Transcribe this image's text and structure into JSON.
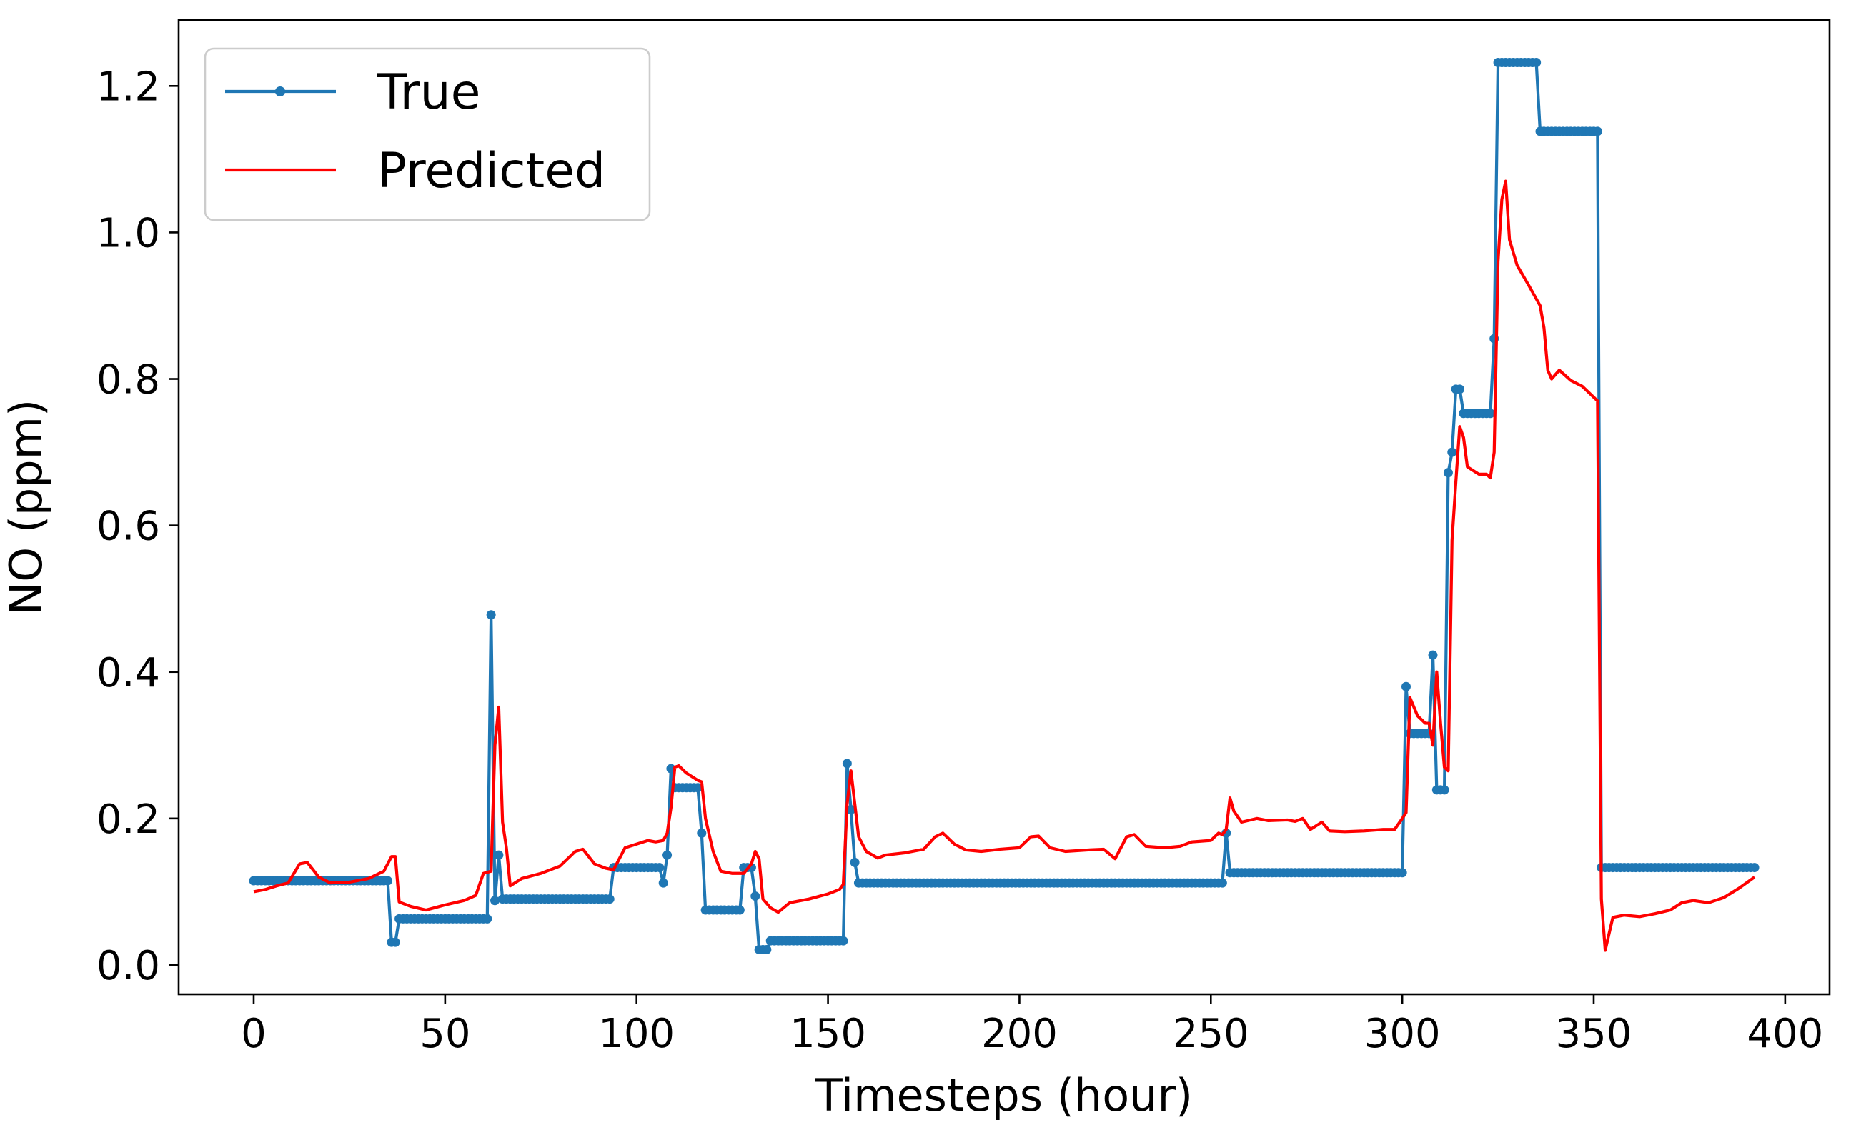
{
  "chart_data": {
    "type": "line",
    "title": "",
    "xlabel": "Timesteps (hour)",
    "ylabel": "NO (ppm)",
    "xlim": [
      -19.6,
      411.6
    ],
    "ylim": [
      -0.04,
      1.29
    ],
    "xticks": [
      0,
      50,
      100,
      150,
      200,
      250,
      300,
      350,
      400
    ],
    "yticks": [
      0.0,
      0.2,
      0.4,
      0.6,
      0.8,
      1.0,
      1.2
    ],
    "xtick_labels": [
      "0",
      "50",
      "100",
      "150",
      "200",
      "250",
      "300",
      "350",
      "400"
    ],
    "ytick_labels": [
      "0.0",
      "0.2",
      "0.4",
      "0.6",
      "0.8",
      "1.0",
      "1.2"
    ],
    "grid": false,
    "legend_position": "top-left",
    "series": [
      {
        "name": "True",
        "color": "#1f77b4",
        "marker": "circle",
        "segments": [
          [
            0,
            35,
            0.115
          ],
          [
            36,
            37,
            0.031
          ],
          [
            38,
            62,
            0.063
          ],
          [
            62,
            62,
            0.478
          ],
          [
            63,
            63,
            0.088
          ],
          [
            64,
            64,
            0.15
          ],
          [
            65,
            94,
            0.09
          ],
          [
            94,
            107,
            0.133
          ],
          [
            107,
            107,
            0.112
          ],
          [
            108,
            108,
            0.15
          ],
          [
            109,
            109,
            0.268
          ],
          [
            110,
            116,
            0.242
          ],
          [
            117,
            117,
            0.18
          ],
          [
            118,
            127,
            0.075
          ],
          [
            128,
            130,
            0.133
          ],
          [
            131,
            131,
            0.094
          ],
          [
            132,
            134,
            0.021
          ],
          [
            135,
            154,
            0.033
          ],
          [
            155,
            155,
            0.275
          ],
          [
            156,
            156,
            0.212
          ],
          [
            157,
            157,
            0.14
          ],
          [
            158,
            253,
            0.112
          ],
          [
            254,
            254,
            0.18
          ],
          [
            255,
            300,
            0.126
          ],
          [
            301,
            301,
            0.38
          ],
          [
            302,
            307,
            0.316
          ],
          [
            308,
            308,
            0.423
          ],
          [
            309,
            311,
            0.239
          ],
          [
            312,
            312,
            0.672
          ],
          [
            313,
            313,
            0.7
          ],
          [
            314,
            315,
            0.786
          ],
          [
            316,
            323,
            0.753
          ],
          [
            324,
            324,
            0.855
          ],
          [
            325,
            335,
            1.232
          ],
          [
            336,
            351,
            1.138
          ],
          [
            352,
            392,
            0.133
          ]
        ]
      },
      {
        "name": "Predicted",
        "color": "#ff0000",
        "points": [
          [
            0,
            0.1
          ],
          [
            3,
            0.103
          ],
          [
            6,
            0.108
          ],
          [
            9,
            0.112
          ],
          [
            12,
            0.138
          ],
          [
            14,
            0.14
          ],
          [
            17,
            0.12
          ],
          [
            20,
            0.112
          ],
          [
            25,
            0.113
          ],
          [
            30,
            0.118
          ],
          [
            34,
            0.128
          ],
          [
            36,
            0.148
          ],
          [
            37,
            0.148
          ],
          [
            38,
            0.086
          ],
          [
            41,
            0.08
          ],
          [
            45,
            0.075
          ],
          [
            50,
            0.082
          ],
          [
            55,
            0.088
          ],
          [
            58,
            0.095
          ],
          [
            60,
            0.125
          ],
          [
            62,
            0.128
          ],
          [
            63,
            0.3
          ],
          [
            64,
            0.352
          ],
          [
            65,
            0.195
          ],
          [
            66,
            0.16
          ],
          [
            67,
            0.108
          ],
          [
            70,
            0.118
          ],
          [
            75,
            0.125
          ],
          [
            80,
            0.135
          ],
          [
            84,
            0.155
          ],
          [
            86,
            0.158
          ],
          [
            89,
            0.138
          ],
          [
            92,
            0.132
          ],
          [
            94,
            0.13
          ],
          [
            97,
            0.16
          ],
          [
            100,
            0.165
          ],
          [
            103,
            0.17
          ],
          [
            105,
            0.168
          ],
          [
            107,
            0.17
          ],
          [
            108,
            0.18
          ],
          [
            109,
            0.215
          ],
          [
            110,
            0.27
          ],
          [
            111,
            0.272
          ],
          [
            113,
            0.262
          ],
          [
            116,
            0.252
          ],
          [
            117,
            0.25
          ],
          [
            118,
            0.2
          ],
          [
            120,
            0.155
          ],
          [
            122,
            0.128
          ],
          [
            125,
            0.125
          ],
          [
            128,
            0.125
          ],
          [
            130,
            0.138
          ],
          [
            131,
            0.155
          ],
          [
            132,
            0.145
          ],
          [
            133,
            0.09
          ],
          [
            135,
            0.078
          ],
          [
            137,
            0.072
          ],
          [
            140,
            0.085
          ],
          [
            145,
            0.09
          ],
          [
            150,
            0.097
          ],
          [
            153,
            0.103
          ],
          [
            154,
            0.11
          ],
          [
            155,
            0.22
          ],
          [
            156,
            0.265
          ],
          [
            157,
            0.22
          ],
          [
            158,
            0.175
          ],
          [
            160,
            0.155
          ],
          [
            163,
            0.146
          ],
          [
            165,
            0.15
          ],
          [
            170,
            0.153
          ],
          [
            175,
            0.158
          ],
          [
            178,
            0.175
          ],
          [
            180,
            0.18
          ],
          [
            183,
            0.165
          ],
          [
            186,
            0.157
          ],
          [
            190,
            0.155
          ],
          [
            195,
            0.158
          ],
          [
            200,
            0.16
          ],
          [
            203,
            0.175
          ],
          [
            205,
            0.176
          ],
          [
            208,
            0.16
          ],
          [
            212,
            0.155
          ],
          [
            218,
            0.157
          ],
          [
            222,
            0.158
          ],
          [
            225,
            0.145
          ],
          [
            228,
            0.175
          ],
          [
            230,
            0.178
          ],
          [
            233,
            0.162
          ],
          [
            238,
            0.16
          ],
          [
            242,
            0.162
          ],
          [
            245,
            0.168
          ],
          [
            250,
            0.17
          ],
          [
            252,
            0.18
          ],
          [
            253,
            0.178
          ],
          [
            254,
            0.185
          ],
          [
            255,
            0.228
          ],
          [
            256,
            0.21
          ],
          [
            258,
            0.195
          ],
          [
            262,
            0.2
          ],
          [
            265,
            0.197
          ],
          [
            270,
            0.198
          ],
          [
            272,
            0.196
          ],
          [
            274,
            0.2
          ],
          [
            276,
            0.185
          ],
          [
            279,
            0.195
          ],
          [
            281,
            0.183
          ],
          [
            285,
            0.182
          ],
          [
            290,
            0.183
          ],
          [
            295,
            0.185
          ],
          [
            298,
            0.185
          ],
          [
            300,
            0.2
          ],
          [
            301,
            0.208
          ],
          [
            302,
            0.365
          ],
          [
            304,
            0.34
          ],
          [
            306,
            0.33
          ],
          [
            307,
            0.33
          ],
          [
            308,
            0.3
          ],
          [
            309,
            0.4
          ],
          [
            310,
            0.33
          ],
          [
            311,
            0.27
          ],
          [
            312,
            0.265
          ],
          [
            313,
            0.58
          ],
          [
            314,
            0.66
          ],
          [
            315,
            0.735
          ],
          [
            316,
            0.72
          ],
          [
            317,
            0.68
          ],
          [
            320,
            0.67
          ],
          [
            322,
            0.67
          ],
          [
            323,
            0.665
          ],
          [
            324,
            0.7
          ],
          [
            325,
            0.96
          ],
          [
            326,
            1.045
          ],
          [
            327,
            1.07
          ],
          [
            328,
            0.99
          ],
          [
            330,
            0.955
          ],
          [
            333,
            0.928
          ],
          [
            336,
            0.9
          ],
          [
            337,
            0.87
          ],
          [
            338,
            0.812
          ],
          [
            339,
            0.8
          ],
          [
            341,
            0.812
          ],
          [
            344,
            0.798
          ],
          [
            347,
            0.79
          ],
          [
            349,
            0.78
          ],
          [
            351,
            0.77
          ],
          [
            352,
            0.09
          ],
          [
            353,
            0.02
          ],
          [
            355,
            0.065
          ],
          [
            358,
            0.068
          ],
          [
            362,
            0.066
          ],
          [
            366,
            0.07
          ],
          [
            370,
            0.075
          ],
          [
            373,
            0.085
          ],
          [
            376,
            0.088
          ],
          [
            380,
            0.085
          ],
          [
            384,
            0.092
          ],
          [
            388,
            0.105
          ],
          [
            392,
            0.12
          ]
        ]
      }
    ]
  }
}
